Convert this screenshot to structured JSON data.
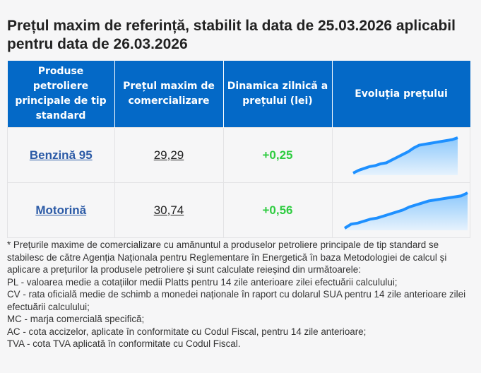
{
  "title": "Prețul maxim de referință, stabilit la data de 25.03.2026 aplicabil pentru data de 26.03.2026",
  "table": {
    "headers": [
      "Produse petroliere principale de tip standard",
      "Prețul maxim de comercializare",
      "Dinamica zilnică a prețului (lei)",
      "Evoluția prețului"
    ],
    "rows": [
      {
        "product": "Benzină 95",
        "price": "29,29",
        "change": "+0,25",
        "trend": [
          0,
          3,
          5,
          7,
          8,
          10,
          11,
          14,
          17,
          20,
          23,
          27,
          30,
          31,
          32,
          33,
          34,
          35,
          36,
          38
        ]
      },
      {
        "product": "Motorină",
        "price": "30,74",
        "change": "+0,56",
        "trend": [
          0,
          4,
          5,
          7,
          9,
          10,
          12,
          14,
          16,
          18,
          21,
          23,
          25,
          27,
          28,
          29,
          30,
          31,
          32,
          35
        ]
      }
    ]
  },
  "colors": {
    "header_bg": "#0469c7",
    "link": "#2b5aa6",
    "positive": "#2ecc40",
    "sparkline": "#1e90ff"
  },
  "notes": [
    "* Prețurile maxime de comercializare cu amănuntul a produselor petroliere principale de tip standard se stabilesc de către Agenția Naționala pentru Reglementare în Energetică în baza Metodologiei de calcul și aplicare a prețurilor la produsele petroliere și sunt calculate reieșind din următoarele:",
    "PL - valoarea medie a cotațiilor medii Platts pentru 14 zile anterioare zilei efectuării calculului;",
    "CV - rata oficială medie de schimb a monedei naționale în raport cu dolarul SUA pentru 14 zile anterioare zilei efectuării calculului;",
    "MC - marja comercială specifică;",
    "AC - cota accizelor, aplicate în conformitate cu Codul Fiscal, pentru 14 zile anterioare;",
    "TVA - cota TVA aplicată în conformitate cu Codul Fiscal."
  ]
}
